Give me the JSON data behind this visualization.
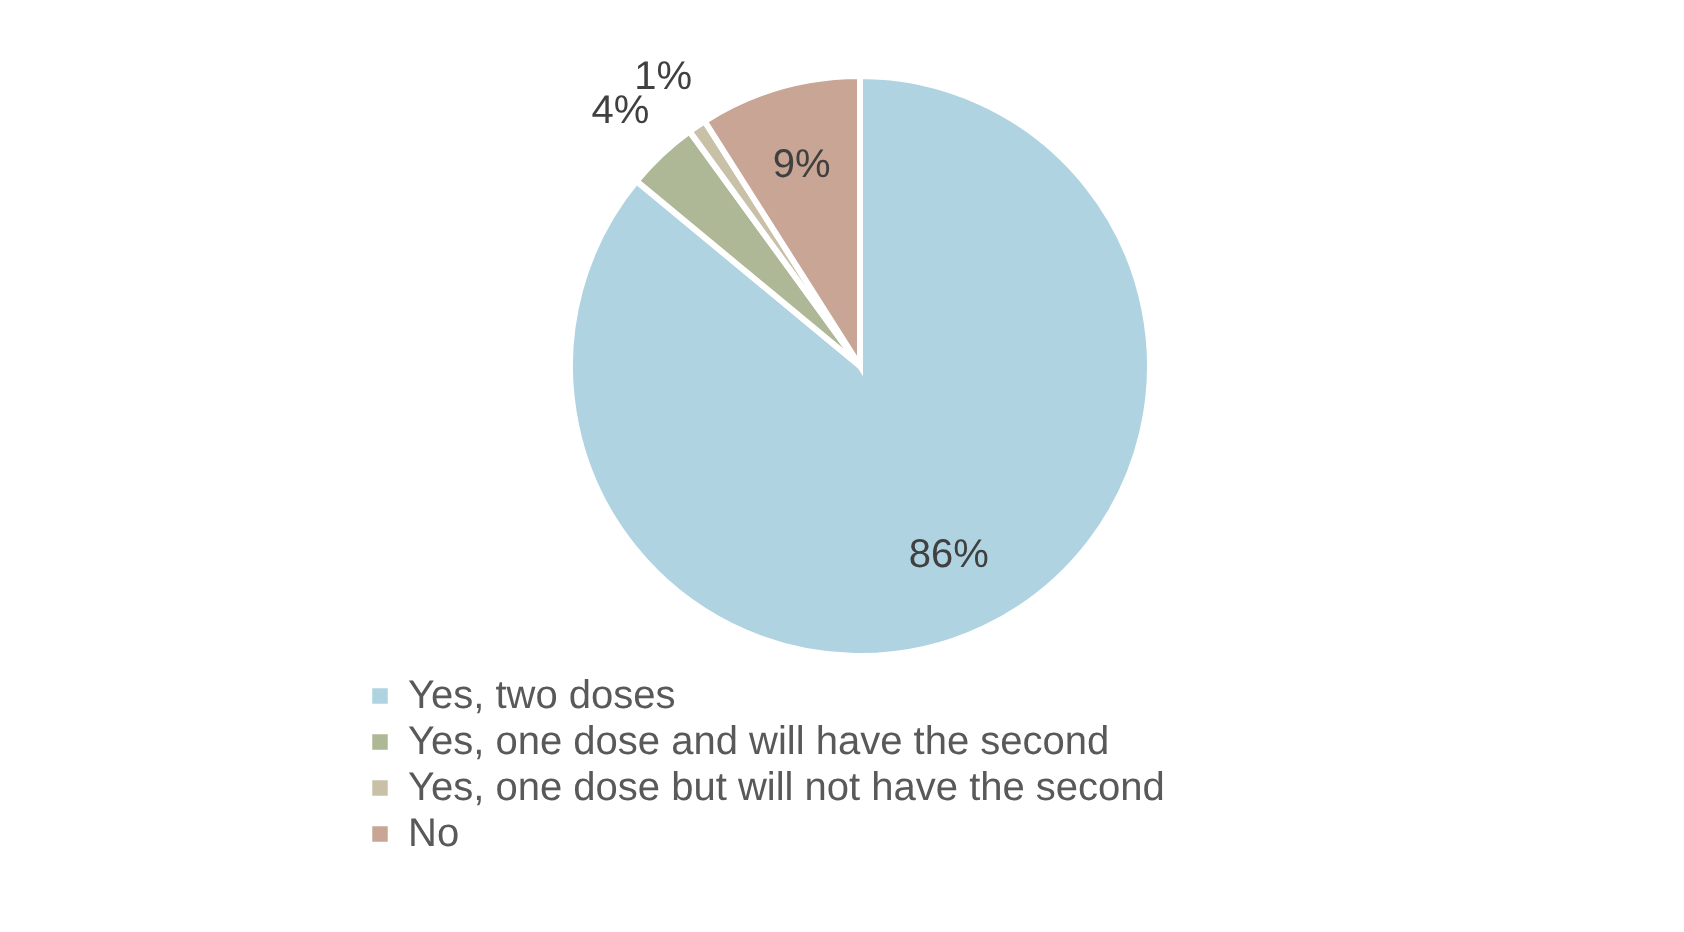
{
  "chart_data": {
    "type": "pie",
    "categories": [
      "Yes, two doses",
      "Yes, one dose and will have the second",
      "Yes, one dose but will not have the second",
      "No"
    ],
    "values": [
      86,
      4,
      1,
      9
    ],
    "value_labels": [
      "86%",
      "4%",
      "1%",
      "9%"
    ],
    "colors": [
      "#b0d3e1",
      "#aeb896",
      "#c8c1a8",
      "#c9a595"
    ],
    "legend": "bottom"
  }
}
